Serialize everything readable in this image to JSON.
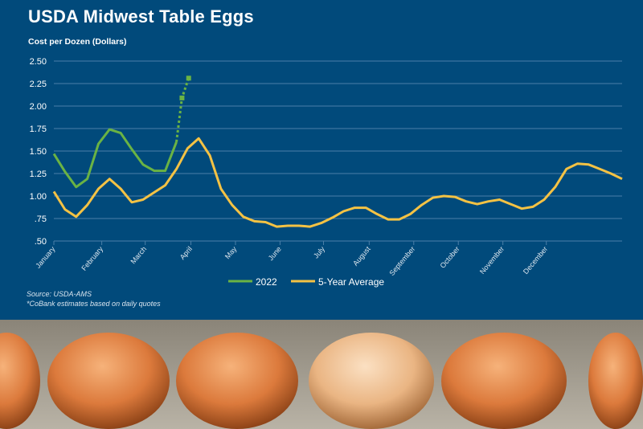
{
  "chart_data": {
    "type": "line",
    "title": "USDA Midwest Table Eggs",
    "ylabel": "Cost per Dozen (Dollars)",
    "ylim": [
      0.5,
      2.5
    ],
    "yticks": [
      0.5,
      0.75,
      1.0,
      1.25,
      1.5,
      1.75,
      2.0,
      2.25,
      2.5
    ],
    "ytick_labels": [
      ".50",
      ".75",
      "1.00",
      "1.25",
      "1.50",
      "1.75",
      "2.00",
      "2.25",
      "2.50"
    ],
    "x_unit": "week of year",
    "xlim": [
      1,
      52
    ],
    "month_ticks": [
      {
        "label": "January",
        "week": 1
      },
      {
        "label": "February",
        "week": 5.3
      },
      {
        "label": "March",
        "week": 9.2
      },
      {
        "label": "April",
        "week": 13.3
      },
      {
        "label": "May",
        "week": 17.3
      },
      {
        "label": "June",
        "week": 21.3
      },
      {
        "label": "July",
        "week": 25.2
      },
      {
        "label": "August",
        "week": 29.3
      },
      {
        "label": "September",
        "week": 33.3
      },
      {
        "label": "October",
        "week": 37.3
      },
      {
        "label": "November",
        "week": 41.3
      },
      {
        "label": "December",
        "week": 45.2
      }
    ],
    "grid": true,
    "legend_placement": "bottom-center",
    "series": [
      {
        "name": "2022",
        "color": "#6ab344",
        "values": [
          1.47,
          1.27,
          1.1,
          1.19,
          1.58,
          1.74,
          1.7,
          1.52,
          1.35,
          1.28,
          1.28,
          1.6
        ],
        "estimates": [
          {
            "week": 12,
            "value": 1.6
          },
          {
            "week": 12.5,
            "value": 2.09
          },
          {
            "week": 13.1,
            "value": 2.31
          }
        ]
      },
      {
        "name": "5-Year Average",
        "color": "#f4c244",
        "values": [
          1.05,
          0.85,
          0.77,
          0.9,
          1.08,
          1.19,
          1.08,
          0.93,
          0.96,
          1.04,
          1.12,
          1.3,
          1.53,
          1.64,
          1.45,
          1.08,
          0.9,
          0.77,
          0.72,
          0.71,
          0.66,
          0.67,
          0.67,
          0.66,
          0.7,
          0.76,
          0.83,
          0.87,
          0.87,
          0.8,
          0.74,
          0.74,
          0.8,
          0.9,
          0.98,
          1.0,
          0.99,
          0.94,
          0.91,
          0.94,
          0.96,
          0.91,
          0.86,
          0.88,
          0.96,
          1.1,
          1.3,
          1.36,
          1.35,
          1.3,
          1.25,
          1.19
        ]
      }
    ]
  },
  "source": "Source: USDA-AMS",
  "footnote": "*CoBank estimates based on daily quotes",
  "colors": {
    "background": "#014a7b",
    "grid": "#4b7fa8"
  }
}
